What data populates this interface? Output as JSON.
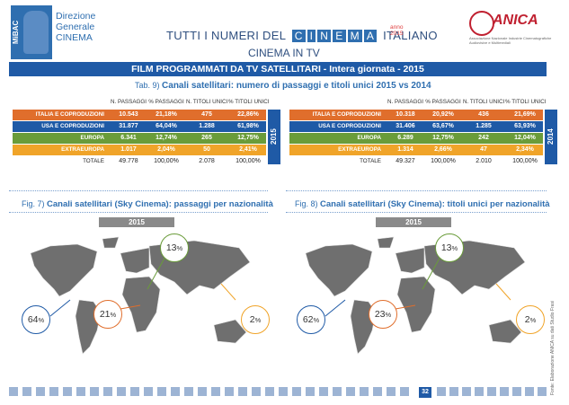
{
  "header": {
    "mibac_vertical": "MiBAC",
    "mibac_lines": [
      "Direzione",
      "Generale",
      "CINEMA"
    ],
    "title_left": "TUTTI I NUMERI DEL",
    "title_cinema": [
      "C",
      "I",
      "N",
      "E",
      "M",
      "A"
    ],
    "title_right": "ITALIANO",
    "title_year_top": "anno",
    "title_year": "2015",
    "subtitle": "CINEMA IN TV",
    "anica_word": "ANICA",
    "anica_sub": "Associazione Nazionale Industrie Cinematografiche Audiovisive e Multimediali"
  },
  "banner": "FILM PROGRAMMATI DA TV SATELLITARI - Intera giornata - 2015",
  "table_caption": {
    "prefix": "Tab. 9)",
    "text": "Canali satellitari: numero di passaggi e titoli unici 2015 vs 2014"
  },
  "colors": {
    "italia": "#e06e2c",
    "usa": "#1f5aa6",
    "europa": "#6a9c3a",
    "extra": "#f0a429",
    "brand": "#1f5aa6"
  },
  "columns": [
    "N. PASSAGGI",
    "% PASSAGGI",
    "N. TITOLI UNICI",
    "% TITOLI UNICI"
  ],
  "tables": [
    {
      "year": "2015",
      "rows": [
        {
          "label": "ITALIA E COPRODUZIONI",
          "cells": [
            "10.543",
            "21,18%",
            "475",
            "22,86%"
          ]
        },
        {
          "label": "USA E COPRODUZIONI",
          "cells": [
            "31.877",
            "64,04%",
            "1.288",
            "61,98%"
          ]
        },
        {
          "label": "EUROPA",
          "cells": [
            "6.341",
            "12,74%",
            "265",
            "12,75%"
          ]
        },
        {
          "label": "EXTRAEUROPA",
          "cells": [
            "1.017",
            "2,04%",
            "50",
            "2,41%"
          ]
        }
      ],
      "total": {
        "label": "TOTALE",
        "cells": [
          "49.778",
          "100,00%",
          "2.078",
          "100,00%"
        ]
      }
    },
    {
      "year": "2014",
      "rows": [
        {
          "label": "ITALIA E COPRODUZIONI",
          "cells": [
            "10.318",
            "20,92%",
            "436",
            "21,69%"
          ]
        },
        {
          "label": "USA E COPRODUZIONI",
          "cells": [
            "31.406",
            "63,67%",
            "1.285",
            "63,93%"
          ]
        },
        {
          "label": "EUROPA",
          "cells": [
            "6.289",
            "12,75%",
            "242",
            "12,04%"
          ]
        },
        {
          "label": "EXTRAEUROPA",
          "cells": [
            "1.314",
            "2,66%",
            "47",
            "2,34%"
          ]
        }
      ],
      "total": {
        "label": "TOTALE",
        "cells": [
          "49.327",
          "100,00%",
          "2.010",
          "100,00%"
        ]
      }
    }
  ],
  "figures": [
    {
      "prefix": "Fig. 7)",
      "title": "Canali satellitari (Sky Cinema): passaggi per nazionalità",
      "year": "2015",
      "bubbles": {
        "usa": "64",
        "italia": "21",
        "europa": "13",
        "extra": "2"
      }
    },
    {
      "prefix": "Fig. 8)",
      "title": "Canali satellitari (Sky Cinema): titoli unici per nazionalità",
      "year": "2015",
      "bubbles": {
        "usa": "62",
        "italia": "23",
        "europa": "13",
        "extra": "2"
      }
    }
  ],
  "percent_sign": "%",
  "page_number": "32",
  "source": "Fonte: Elaborazione ANICA su dati Studio Frasi"
}
